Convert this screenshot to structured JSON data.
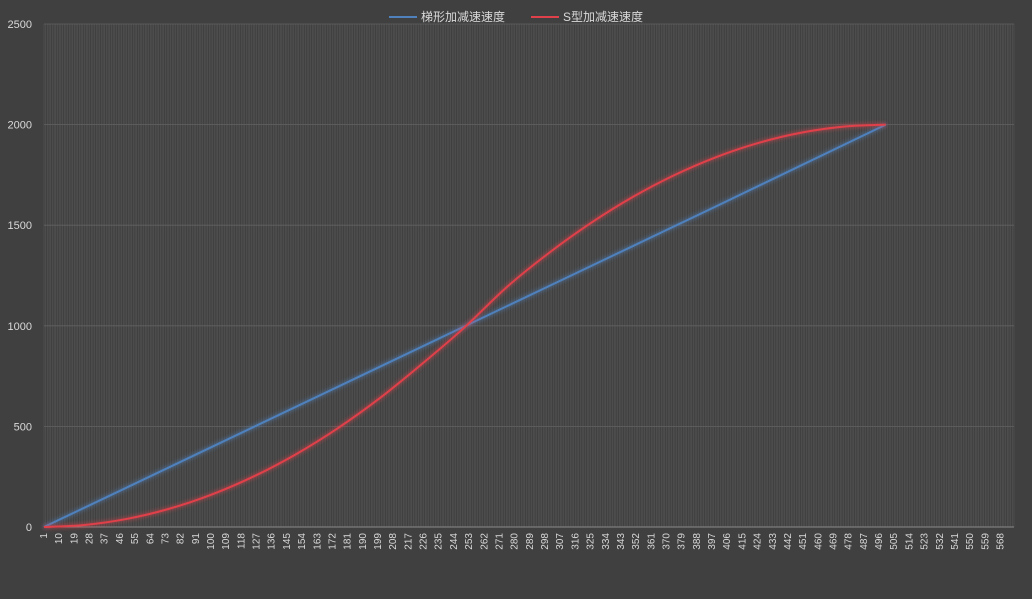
{
  "chart_data": {
    "type": "line",
    "title": "",
    "xlabel": "",
    "ylabel": "",
    "legend_position": "top-center",
    "grid": true,
    "ylim": [
      0,
      2500
    ],
    "yticks": [
      0,
      500,
      1000,
      1500,
      2000,
      2500
    ],
    "x_range": [
      1,
      576
    ],
    "x_tick_step": 9,
    "x_tick_labels": [
      "1",
      "10",
      "19",
      "28",
      "37",
      "46",
      "55",
      "64",
      "73",
      "82",
      "91",
      "100",
      "109",
      "118",
      "127",
      "136",
      "145",
      "154",
      "163",
      "172",
      "181",
      "190",
      "199",
      "208",
      "217",
      "226",
      "235",
      "244",
      "253",
      "262",
      "271",
      "280",
      "289",
      "298",
      "307",
      "316",
      "325",
      "334",
      "343",
      "352",
      "361",
      "370",
      "379",
      "388",
      "397",
      "406",
      "415",
      "424",
      "433",
      "442",
      "451",
      "460",
      "469",
      "478",
      "487",
      "496",
      "505",
      "514",
      "523",
      "532",
      "541",
      "550",
      "559",
      "568"
    ],
    "series": [
      {
        "name": "梯形加减速速度",
        "color": "#4f81bd",
        "x": [
          1,
          100,
          200,
          300,
          400,
          500
        ],
        "y": [
          0,
          396,
          796,
          1196,
          1596,
          2000
        ]
      },
      {
        "name": "S型加减速速度",
        "color": "#e0404a",
        "x": [
          1,
          25,
          50,
          75,
          100,
          125,
          150,
          175,
          200,
          225,
          250,
          275,
          300,
          325,
          350,
          375,
          400,
          425,
          450,
          475,
          500
        ],
        "y": [
          0,
          10,
          40,
          90,
          160,
          250,
          360,
          490,
          640,
          810,
          990,
          1190,
          1360,
          1510,
          1640,
          1750,
          1840,
          1910,
          1960,
          1990,
          2000
        ]
      }
    ]
  }
}
